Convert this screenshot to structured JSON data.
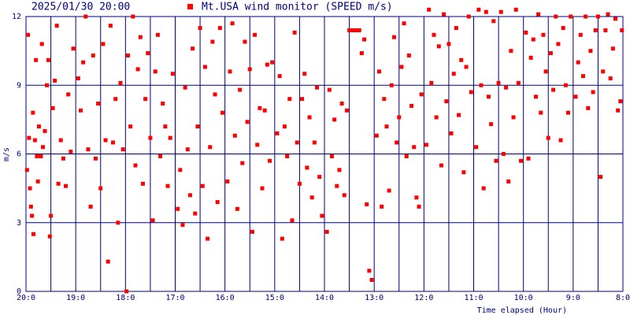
{
  "chart_data": {
    "type": "scatter",
    "title": "2025/01/30 20:00",
    "xlabel": "Time elapsed (Hour)",
    "ylabel": "m/s",
    "xlim": [
      20,
      8
    ],
    "ylim": [
      0,
      12
    ],
    "yticks": [
      0,
      3,
      6,
      9,
      12
    ],
    "grid": true,
    "xticks": [
      {
        "value": 20,
        "label": "20:0"
      },
      {
        "value": 19.5,
        "label": null
      },
      {
        "value": 19,
        "label": "19:0"
      },
      {
        "value": 18.5,
        "label": null
      },
      {
        "value": 18,
        "label": "18:0"
      },
      {
        "value": 17.5,
        "label": null
      },
      {
        "value": 17,
        "label": "17:0"
      },
      {
        "value": 16.5,
        "label": null
      },
      {
        "value": 16,
        "label": "16:0"
      },
      {
        "value": 15.5,
        "label": null
      },
      {
        "value": 15,
        "label": "15:0"
      },
      {
        "value": 14.5,
        "label": null
      },
      {
        "value": 14,
        "label": "14:0"
      },
      {
        "value": 13.5,
        "label": null
      },
      {
        "value": 13,
        "label": "13:0"
      },
      {
        "value": 12.5,
        "label": null
      },
      {
        "value": 12,
        "label": "12:0"
      },
      {
        "value": 11.5,
        "label": null
      },
      {
        "value": 11,
        "label": "11:0"
      },
      {
        "value": 10.5,
        "label": null
      },
      {
        "value": 10,
        "label": "10:0"
      },
      {
        "value": 9.5,
        "label": null
      },
      {
        "value": 9,
        "label": "9:0"
      },
      {
        "value": 8.5,
        "label": null
      },
      {
        "value": 8,
        "label": "8:0"
      }
    ],
    "x": [
      19.98,
      19.96,
      19.94,
      19.92,
      19.9,
      19.88,
      19.86,
      19.85,
      19.82,
      19.8,
      19.78,
      19.76,
      19.74,
      19.7,
      19.68,
      19.66,
      19.62,
      19.58,
      19.55,
      19.52,
      19.5,
      19.46,
      19.42,
      19.38,
      19.35,
      19.3,
      19.25,
      19.2,
      19.15,
      19.1,
      19.05,
      18.95,
      18.9,
      18.85,
      18.8,
      18.75,
      18.7,
      18.65,
      18.6,
      18.55,
      18.5,
      18.45,
      18.4,
      18.35,
      18.3,
      18.25,
      18.2,
      18.15,
      18.1,
      18.05,
      17.98,
      17.95,
      17.9,
      17.85,
      17.8,
      17.75,
      17.7,
      17.65,
      17.6,
      17.55,
      17.5,
      17.45,
      17.4,
      17.35,
      17.3,
      17.25,
      17.2,
      17.15,
      17.1,
      17.05,
      16.95,
      16.9,
      16.85,
      16.8,
      16.75,
      16.7,
      16.65,
      16.6,
      16.55,
      16.5,
      16.45,
      16.4,
      16.35,
      16.3,
      16.25,
      16.2,
      16.15,
      16.1,
      16.05,
      15.95,
      15.9,
      15.85,
      15.8,
      15.75,
      15.7,
      15.65,
      15.6,
      15.55,
      15.5,
      15.45,
      15.4,
      15.35,
      15.3,
      15.25,
      15.2,
      15.15,
      15.1,
      15.05,
      14.95,
      14.9,
      14.85,
      14.8,
      14.75,
      14.7,
      14.65,
      14.6,
      14.55,
      14.5,
      14.45,
      14.4,
      14.35,
      14.3,
      14.25,
      14.2,
      14.15,
      14.1,
      14.05,
      13.95,
      13.9,
      13.85,
      13.8,
      13.75,
      13.7,
      13.65,
      13.6,
      13.55,
      13.5,
      13.45,
      13.4,
      13.35,
      13.3,
      13.25,
      13.2,
      13.15,
      13.1,
      13.05,
      12.95,
      12.9,
      12.85,
      12.8,
      12.75,
      12.7,
      12.65,
      12.6,
      12.55,
      12.5,
      12.45,
      12.4,
      12.35,
      12.3,
      12.25,
      12.2,
      12.15,
      12.1,
      12.05,
      11.95,
      11.9,
      11.85,
      11.8,
      11.75,
      11.7,
      11.65,
      11.6,
      11.55,
      11.5,
      11.45,
      11.4,
      11.35,
      11.3,
      11.25,
      11.2,
      11.15,
      11.1,
      11.05,
      10.95,
      10.9,
      10.85,
      10.8,
      10.75,
      10.7,
      10.65,
      10.6,
      10.55,
      10.5,
      10.45,
      10.4,
      10.35,
      10.3,
      10.25,
      10.2,
      10.15,
      10.1,
      10.05,
      9.95,
      9.9,
      9.85,
      9.8,
      9.75,
      9.7,
      9.65,
      9.6,
      9.55,
      9.5,
      9.45,
      9.4,
      9.35,
      9.3,
      9.25,
      9.2,
      9.15,
      9.1,
      9.05,
      8.95,
      8.9,
      8.85,
      8.8,
      8.75,
      8.7,
      8.65,
      8.6,
      8.55,
      8.5,
      8.45,
      8.4,
      8.35,
      8.3,
      8.25,
      8.2,
      8.15,
      8.1,
      8.05,
      8.02
    ],
    "series": [
      {
        "name": "Mt.USA wind monitor (SPEED m/s)",
        "color": "#ff0000",
        "values": [
          5.3,
          11.2,
          6.7,
          4.5,
          3.7,
          3.3,
          7.8,
          2.5,
          6.6,
          10.1,
          5.9,
          4.8,
          7.2,
          5.9,
          10.8,
          6.3,
          7.0,
          9.0,
          10.1,
          2.4,
          3.3,
          8.0,
          9.2,
          11.6,
          4.7,
          6.6,
          5.8,
          4.6,
          8.6,
          6.1,
          10.6,
          9.3,
          7.9,
          10.0,
          12.0,
          6.2,
          3.7,
          10.3,
          5.8,
          8.2,
          4.5,
          10.8,
          6.6,
          1.3,
          11.6,
          6.5,
          8.4,
          3.0,
          9.1,
          6.2,
          0.0,
          10.3,
          7.2,
          12.0,
          5.5,
          9.7,
          11.1,
          4.7,
          8.4,
          10.4,
          6.7,
          3.1,
          9.6,
          11.2,
          5.9,
          8.2,
          7.2,
          4.6,
          6.7,
          9.5,
          3.6,
          5.3,
          2.9,
          8.9,
          6.2,
          4.2,
          10.6,
          3.4,
          7.2,
          11.5,
          4.6,
          9.8,
          2.3,
          6.3,
          10.9,
          8.6,
          3.9,
          11.5,
          7.8,
          4.8,
          9.6,
          11.7,
          6.8,
          3.6,
          8.8,
          5.6,
          10.9,
          7.4,
          9.7,
          2.6,
          11.2,
          6.4,
          8.0,
          4.5,
          7.9,
          9.9,
          5.7,
          10.0,
          6.9,
          9.4,
          2.3,
          7.2,
          5.9,
          8.4,
          3.1,
          11.3,
          6.5,
          4.7,
          8.4,
          9.5,
          5.4,
          7.6,
          4.1,
          6.5,
          8.9,
          5.0,
          3.3,
          2.6,
          8.8,
          5.9,
          7.5,
          4.6,
          5.3,
          8.2,
          4.2,
          7.9,
          11.4,
          11.4,
          11.4,
          11.4,
          11.4,
          10.4,
          11.0,
          3.8,
          0.9,
          0.5,
          6.8,
          9.6,
          3.7,
          8.4,
          7.2,
          4.4,
          9.0,
          11.1,
          6.5,
          7.6,
          9.8,
          11.7,
          5.9,
          10.3,
          8.1,
          6.3,
          4.1,
          3.7,
          8.6,
          6.4,
          12.3,
          9.1,
          11.2,
          7.6,
          10.7,
          5.5,
          12.1,
          8.3,
          10.8,
          6.9,
          9.5,
          11.5,
          7.7,
          10.1,
          5.2,
          9.8,
          12.0,
          8.7,
          6.3,
          12.3,
          9.0,
          4.5,
          12.2,
          8.5,
          7.3,
          11.8,
          5.7,
          9.1,
          12.2,
          6.0,
          8.9,
          4.8,
          10.5,
          7.6,
          12.3,
          9.1,
          5.7,
          11.3,
          5.8,
          10.2,
          11.0,
          8.5,
          12.1,
          7.8,
          11.2,
          9.6,
          6.7,
          10.4,
          8.8,
          12.0,
          10.8,
          6.6,
          11.5,
          9.0,
          7.8,
          12.0,
          8.5,
          10.0,
          11.2,
          9.4,
          12.0,
          8.0,
          10.5,
          8.7,
          11.4,
          12.0,
          5.0,
          9.6,
          11.4,
          12.1,
          9.3,
          10.6,
          11.9,
          7.9,
          8.3,
          11.4
        ]
      }
    ]
  }
}
